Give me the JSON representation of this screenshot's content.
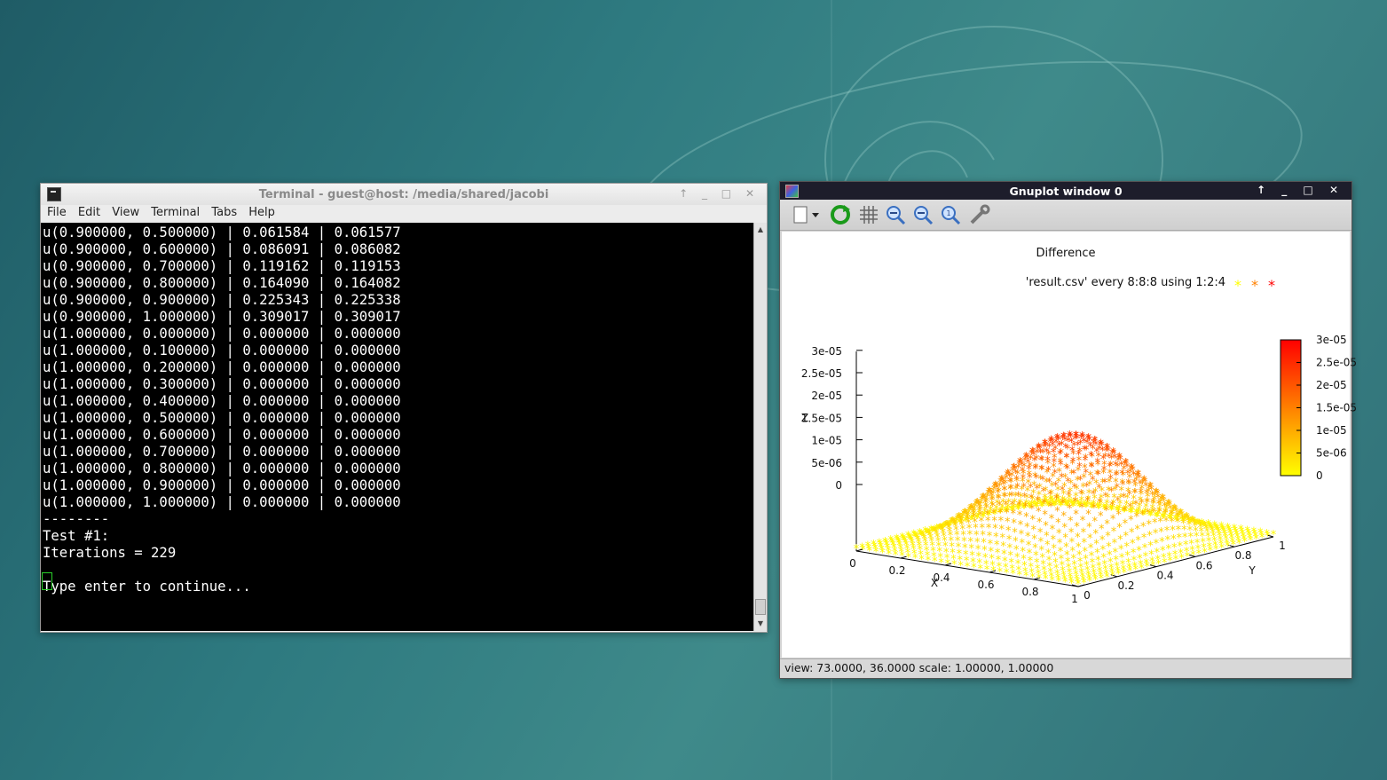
{
  "desktop": {
    "accent": "#3f8a8a"
  },
  "terminal": {
    "title": "Terminal - guest@host: /media/shared/jacobi",
    "controls": "↑ _ □ ✕",
    "menu": [
      "File",
      "Edit",
      "View",
      "Terminal",
      "Tabs",
      "Help"
    ],
    "lines": [
      "u(0.900000, 0.500000) | 0.061584 | 0.061577",
      "u(0.900000, 0.600000) | 0.086091 | 0.086082",
      "u(0.900000, 0.700000) | 0.119162 | 0.119153",
      "u(0.900000, 0.800000) | 0.164090 | 0.164082",
      "u(0.900000, 0.900000) | 0.225343 | 0.225338",
      "u(0.900000, 1.000000) | 0.309017 | 0.309017",
      "u(1.000000, 0.000000) | 0.000000 | 0.000000",
      "u(1.000000, 0.100000) | 0.000000 | 0.000000",
      "u(1.000000, 0.200000) | 0.000000 | 0.000000",
      "u(1.000000, 0.300000) | 0.000000 | 0.000000",
      "u(1.000000, 0.400000) | 0.000000 | 0.000000",
      "u(1.000000, 0.500000) | 0.000000 | 0.000000",
      "u(1.000000, 0.600000) | 0.000000 | 0.000000",
      "u(1.000000, 0.700000) | 0.000000 | 0.000000",
      "u(1.000000, 0.800000) | 0.000000 | 0.000000",
      "u(1.000000, 0.900000) | 0.000000 | 0.000000",
      "u(1.000000, 1.000000) | 0.000000 | 0.000000",
      "--------",
      "Test #1:",
      "Iterations = 229",
      "",
      "Type enter to continue..."
    ]
  },
  "gnuplot": {
    "title": "Gnuplot window 0",
    "controls": "↑ _ □ ✕",
    "toolbar": [
      "export-icon",
      "replot-icon",
      "grid-icon",
      "zoom-prev-icon",
      "zoom-next-icon",
      "unzoom-icon",
      "config-icon"
    ],
    "status": "view:  73.0000,  36.0000   scale:  1.00000,  1.00000",
    "chart_data": {
      "type": "scatter",
      "title": "Difference",
      "legend": "'result.csv' every 8:8:8 using 1:2:4",
      "xlabel": "X",
      "ylabel": "Y",
      "zlabel": "Z",
      "xticks": [
        "0",
        "0.2",
        "0.4",
        "0.6",
        "0.8",
        "1"
      ],
      "yticks": [
        "0",
        "0.2",
        "0.4",
        "0.6",
        "0.8",
        "1"
      ],
      "zticks": [
        "0",
        "5e-06",
        "1e-05",
        "1.5e-05",
        "2e-05",
        "2.5e-05",
        "3e-05"
      ],
      "cbticks": [
        "0",
        "5e-06",
        "1e-05",
        "1.5e-05",
        "2e-05",
        "2.5e-05",
        "3e-05"
      ],
      "zlim": [
        0,
        3e-05
      ],
      "view": [
        73,
        36
      ],
      "palette": [
        "#ffff00",
        "#ff8000",
        "#ff0000"
      ]
    }
  }
}
